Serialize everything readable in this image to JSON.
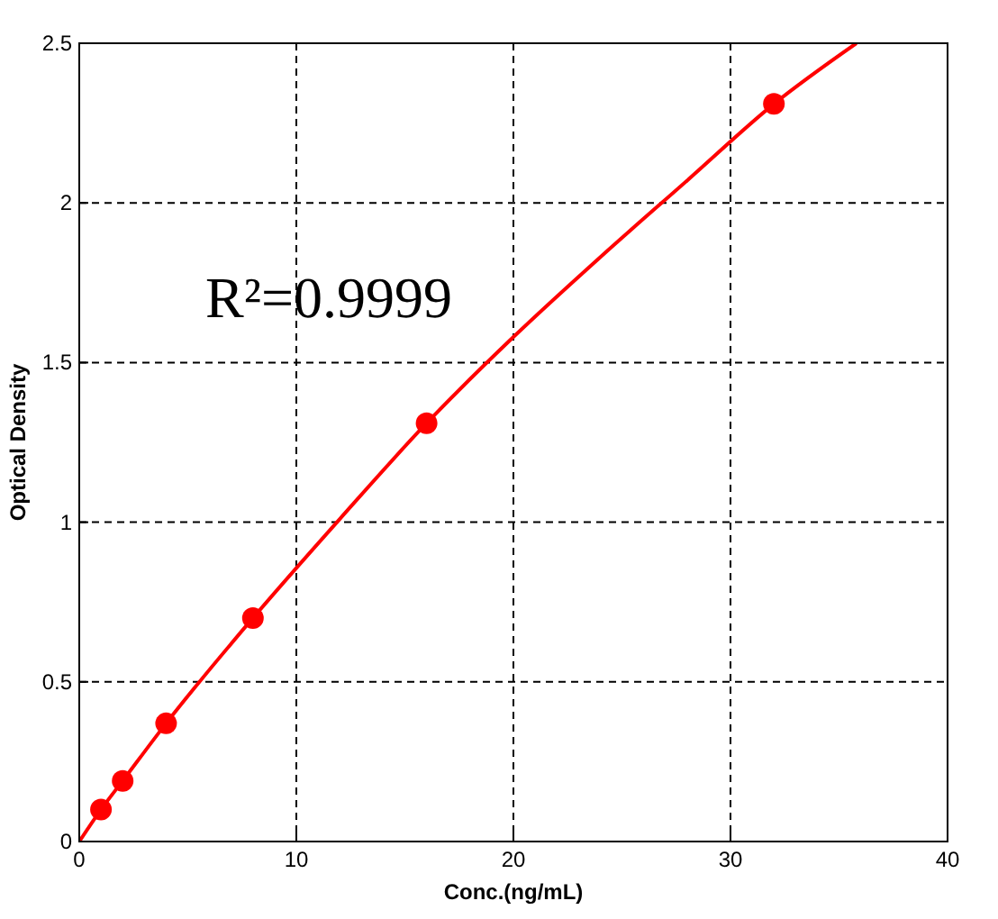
{
  "chart_data": {
    "type": "scatter",
    "xlabel": "Conc.(ng/mL)",
    "ylabel": "Optical Density",
    "xlim": [
      0,
      40
    ],
    "ylim": [
      0,
      2.5
    ],
    "xticks": [
      0,
      10,
      20,
      30,
      40
    ],
    "yticks": [
      0,
      0.5,
      1,
      1.5,
      2,
      2.5
    ],
    "grid": true,
    "annotations": [
      "R²=0.9999"
    ],
    "series": [
      {
        "type": "line",
        "color": "#ff0000",
        "marker": "none",
        "x": [
          0,
          1,
          2,
          4,
          8,
          12,
          16,
          20,
          24,
          28,
          32,
          35.8
        ],
        "values": [
          0,
          0.1,
          0.19,
          0.37,
          0.7,
          1.01,
          1.31,
          1.58,
          1.83,
          2.07,
          2.31,
          2.5
        ]
      },
      {
        "color": "#ff0000",
        "marker": "circle",
        "x": [
          1,
          2,
          4,
          8,
          16,
          32
        ],
        "values": [
          0.1,
          0.19,
          0.37,
          0.7,
          1.31,
          2.31
        ]
      }
    ]
  }
}
